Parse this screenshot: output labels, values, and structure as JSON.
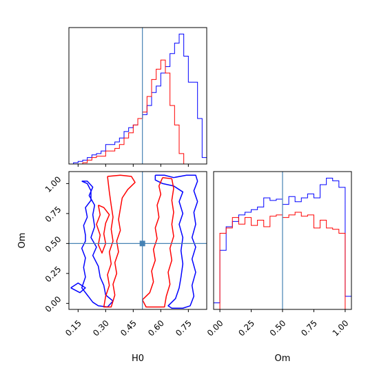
{
  "chart_data": {
    "type": "corner",
    "parameters": [
      "H0",
      "Om"
    ],
    "truths": {
      "H0": 0.5,
      "Om": 0.5
    },
    "truth_color": "#4682b4",
    "series_colors": {
      "blue": "#0000ff",
      "red": "#ff0000"
    },
    "panels": [
      {
        "id": "hist-H0",
        "type": "histogram",
        "x_param": "H0",
        "xlim": [
          0.1,
          0.85
        ],
        "xticks": [
          0.15,
          0.3,
          0.45,
          0.6,
          0.75
        ],
        "xtick_labels": [],
        "yticks_shown": false,
        "ylim": [
          0,
          1.05
        ],
        "bin_edges": [
          0.1,
          0.125,
          0.15,
          0.175,
          0.2,
          0.225,
          0.25,
          0.275,
          0.3,
          0.325,
          0.35,
          0.375,
          0.4,
          0.425,
          0.45,
          0.475,
          0.5,
          0.525,
          0.55,
          0.575,
          0.6,
          0.625,
          0.65,
          0.675,
          0.7,
          0.725,
          0.75,
          0.775,
          0.8,
          0.825,
          0.85
        ],
        "series": [
          {
            "color": "blue",
            "values": [
              0.0,
              0.01,
              0.02,
              0.03,
              0.05,
              0.07,
              0.08,
              0.1,
              0.15,
              0.15,
              0.17,
              0.2,
              0.25,
              0.28,
              0.3,
              0.35,
              0.38,
              0.45,
              0.55,
              0.6,
              0.7,
              0.75,
              0.85,
              0.93,
              1.0,
              0.83,
              0.63,
              0.63,
              0.35,
              0.05
            ]
          },
          {
            "color": "red",
            "values": [
              0.0,
              0.0,
              0.0,
              0.01,
              0.03,
              0.05,
              0.06,
              0.06,
              0.1,
              0.1,
              0.12,
              0.15,
              0.2,
              0.24,
              0.3,
              0.35,
              0.4,
              0.52,
              0.65,
              0.73,
              0.8,
              0.7,
              0.45,
              0.3,
              0.08,
              0.0,
              0.0,
              0.0,
              0.0,
              0.0
            ]
          }
        ]
      },
      {
        "id": "contour-H0-Om",
        "type": "contour",
        "x_param": "H0",
        "y_param": "Om",
        "xlim": [
          0.1,
          0.85
        ],
        "ylim": [
          -0.05,
          1.1
        ],
        "xticks": [
          0.15,
          0.3,
          0.45,
          0.6,
          0.75
        ],
        "xtick_labels": [
          "0.15",
          "0.30",
          "0.45",
          "0.60",
          "0.75"
        ],
        "yticks": [
          0.0,
          0.25,
          0.5,
          0.75,
          1.0
        ],
        "ytick_labels": [
          "0.00",
          "0.25",
          "0.50",
          "0.75",
          "1.00"
        ],
        "xlabel": "H0",
        "ylabel": "Om",
        "contours": [
          {
            "color": "blue",
            "points": [
              [
                0.17,
                1.02
              ],
              [
                0.2,
                1.0
              ],
              [
                0.22,
                0.94
              ],
              [
                0.22,
                0.86
              ],
              [
                0.19,
                0.8
              ],
              [
                0.2,
                0.72
              ],
              [
                0.18,
                0.65
              ],
              [
                0.19,
                0.57
              ],
              [
                0.19,
                0.52
              ],
              [
                0.17,
                0.46
              ],
              [
                0.19,
                0.38
              ],
              [
                0.18,
                0.3
              ],
              [
                0.19,
                0.22
              ],
              [
                0.17,
                0.13
              ],
              [
                0.2,
                0.07
              ],
              [
                0.23,
                0.01
              ],
              [
                0.26,
                -0.02
              ],
              [
                0.31,
                -0.03
              ],
              [
                0.34,
                0.02
              ],
              [
                0.3,
                0.07
              ],
              [
                0.29,
                0.15
              ],
              [
                0.27,
                0.22
              ],
              [
                0.26,
                0.31
              ],
              [
                0.23,
                0.4
              ],
              [
                0.25,
                0.47
              ],
              [
                0.22,
                0.55
              ],
              [
                0.24,
                0.64
              ],
              [
                0.23,
                0.74
              ],
              [
                0.24,
                0.82
              ],
              [
                0.21,
                0.9
              ],
              [
                0.23,
                0.97
              ],
              [
                0.2,
                1.02
              ],
              [
                0.17,
                1.02
              ]
            ]
          },
          {
            "color": "blue",
            "points": [
              [
                0.57,
                1.07
              ],
              [
                0.62,
                1.07
              ],
              [
                0.67,
                1.05
              ],
              [
                0.74,
                1.07
              ],
              [
                0.79,
                1.07
              ],
              [
                0.8,
                1.02
              ],
              [
                0.78,
                0.94
              ],
              [
                0.8,
                0.85
              ],
              [
                0.78,
                0.76
              ],
              [
                0.79,
                0.66
              ],
              [
                0.77,
                0.55
              ],
              [
                0.79,
                0.47
              ],
              [
                0.77,
                0.37
              ],
              [
                0.79,
                0.26
              ],
              [
                0.77,
                0.15
              ],
              [
                0.78,
                0.06
              ],
              [
                0.76,
                -0.02
              ],
              [
                0.72,
                -0.04
              ],
              [
                0.66,
                -0.04
              ],
              [
                0.64,
                -0.02
              ],
              [
                0.68,
                0.04
              ],
              [
                0.7,
                0.13
              ],
              [
                0.71,
                0.22
              ],
              [
                0.72,
                0.33
              ],
              [
                0.71,
                0.44
              ],
              [
                0.72,
                0.55
              ],
              [
                0.7,
                0.66
              ],
              [
                0.72,
                0.75
              ],
              [
                0.7,
                0.85
              ],
              [
                0.72,
                0.93
              ],
              [
                0.67,
                0.98
              ],
              [
                0.61,
                1.0
              ],
              [
                0.57,
                1.03
              ],
              [
                0.57,
                1.07
              ]
            ]
          },
          {
            "color": "blue",
            "points": [
              [
                0.11,
                0.13
              ],
              [
                0.16,
                0.09
              ],
              [
                0.19,
                0.13
              ],
              [
                0.15,
                0.17
              ],
              [
                0.11,
                0.13
              ]
            ]
          },
          {
            "color": "red",
            "points": [
              [
                0.31,
                1.06
              ],
              [
                0.38,
                1.07
              ],
              [
                0.44,
                1.06
              ],
              [
                0.46,
                1.01
              ],
              [
                0.42,
                0.95
              ],
              [
                0.39,
                0.88
              ],
              [
                0.38,
                0.79
              ],
              [
                0.37,
                0.7
              ],
              [
                0.38,
                0.61
              ],
              [
                0.36,
                0.52
              ],
              [
                0.37,
                0.43
              ],
              [
                0.35,
                0.34
              ],
              [
                0.36,
                0.25
              ],
              [
                0.34,
                0.16
              ],
              [
                0.35,
                0.07
              ],
              [
                0.33,
                -0.03
              ],
              [
                0.29,
                -0.03
              ],
              [
                0.3,
                0.06
              ],
              [
                0.32,
                0.15
              ],
              [
                0.31,
                0.24
              ],
              [
                0.33,
                0.33
              ],
              [
                0.32,
                0.43
              ],
              [
                0.34,
                0.52
              ],
              [
                0.33,
                0.62
              ],
              [
                0.34,
                0.72
              ],
              [
                0.33,
                0.82
              ],
              [
                0.32,
                0.93
              ],
              [
                0.31,
                1.06
              ]
            ]
          },
          {
            "color": "red",
            "points": [
              [
                0.61,
                1.05
              ],
              [
                0.66,
                1.04
              ],
              [
                0.67,
                0.96
              ],
              [
                0.66,
                0.86
              ],
              [
                0.67,
                0.76
              ],
              [
                0.66,
                0.66
              ],
              [
                0.67,
                0.56
              ],
              [
                0.65,
                0.46
              ],
              [
                0.66,
                0.36
              ],
              [
                0.64,
                0.26
              ],
              [
                0.65,
                0.16
              ],
              [
                0.63,
                0.06
              ],
              [
                0.62,
                -0.03
              ],
              [
                0.52,
                -0.03
              ],
              [
                0.5,
                0.03
              ],
              [
                0.54,
                0.09
              ],
              [
                0.56,
                0.18
              ],
              [
                0.55,
                0.27
              ],
              [
                0.57,
                0.36
              ],
              [
                0.56,
                0.45
              ],
              [
                0.58,
                0.54
              ],
              [
                0.57,
                0.63
              ],
              [
                0.59,
                0.72
              ],
              [
                0.58,
                0.82
              ],
              [
                0.6,
                0.91
              ],
              [
                0.59,
                0.98
              ],
              [
                0.61,
                1.05
              ]
            ]
          },
          {
            "color": "red",
            "points": [
              [
                0.26,
                0.82
              ],
              [
                0.29,
                0.8
              ],
              [
                0.32,
                0.74
              ],
              [
                0.3,
                0.67
              ],
              [
                0.29,
                0.58
              ],
              [
                0.3,
                0.5
              ],
              [
                0.28,
                0.42
              ],
              [
                0.26,
                0.49
              ],
              [
                0.27,
                0.57
              ],
              [
                0.25,
                0.66
              ],
              [
                0.27,
                0.74
              ],
              [
                0.26,
                0.82
              ]
            ]
          }
        ],
        "truth_point": [
          0.5,
          0.5
        ]
      },
      {
        "id": "hist-Om",
        "type": "histogram",
        "x_param": "Om",
        "xlim": [
          -0.05,
          1.05
        ],
        "xticks": [
          0.0,
          0.25,
          0.5,
          0.75,
          1.0
        ],
        "xtick_labels": [
          "0.00",
          "0.25",
          "0.50",
          "0.75",
          "1.00"
        ],
        "xlabel": "Om",
        "yticks_shown": false,
        "ylim": [
          0,
          1.05
        ],
        "bin_edges": [
          -0.05,
          0.0,
          0.05,
          0.1,
          0.15,
          0.2,
          0.25,
          0.3,
          0.35,
          0.4,
          0.45,
          0.5,
          0.55,
          0.6,
          0.65,
          0.7,
          0.75,
          0.8,
          0.85,
          0.9,
          0.95,
          1.0,
          1.05
        ],
        "series": [
          {
            "color": "blue",
            "values": [
              0.05,
              0.45,
              0.63,
              0.67,
              0.72,
              0.74,
              0.76,
              0.78,
              0.85,
              0.83,
              0.84,
              0.8,
              0.86,
              0.82,
              0.85,
              0.88,
              0.85,
              0.95,
              1.0,
              0.98,
              0.93,
              0.1
            ]
          },
          {
            "color": "red",
            "values": [
              0.0,
              0.58,
              0.62,
              0.7,
              0.65,
              0.7,
              0.64,
              0.68,
              0.63,
              0.71,
              0.72,
              0.7,
              0.72,
              0.74,
              0.71,
              0.72,
              0.62,
              0.68,
              0.62,
              0.61,
              0.58,
              0.0
            ]
          }
        ]
      }
    ]
  }
}
